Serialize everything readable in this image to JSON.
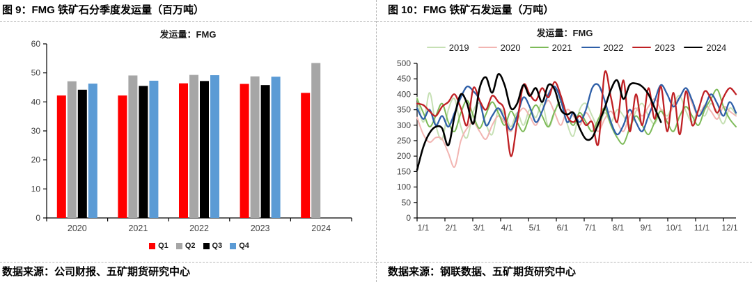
{
  "panels": {
    "left": {
      "title": "图 9：FMG 铁矿石分季度发运量（百万吨）",
      "source": "数据来源：公司财报、五矿期货研究中心"
    },
    "right": {
      "title": "图 10：FMG 铁矿石发运量（万吨）",
      "source": "数据来源：钢联数据、五矿期货研究中心"
    }
  },
  "chart_data": [
    {
      "type": "bar",
      "title": "发运量：FMG",
      "categories": [
        "2020",
        "2021",
        "2022",
        "2023",
        "2024"
      ],
      "series": [
        {
          "name": "Q1",
          "color": "#ff0000",
          "values": [
            42.2,
            42.2,
            46.4,
            46.2,
            43.1
          ]
        },
        {
          "name": "Q2",
          "color": "#a6a6a6",
          "values": [
            47.1,
            49.1,
            49.3,
            48.8,
            53.4
          ]
        },
        {
          "name": "Q3",
          "color": "#000000",
          "values": [
            44.2,
            45.5,
            47.2,
            45.8,
            null
          ]
        },
        {
          "name": "Q4",
          "color": "#5b9bd5",
          "values": [
            46.3,
            47.3,
            49.2,
            48.7,
            null
          ]
        }
      ],
      "ylim": [
        0,
        60
      ],
      "ytick_step": 10,
      "grid": false,
      "legend_position": "bottom"
    },
    {
      "type": "line",
      "title": "发运量：FMG",
      "x_unit": "weekly, week index from Jan 1",
      "xticklabels": [
        "1/1",
        "2/1",
        "3/1",
        "4/1",
        "5/1",
        "6/1",
        "7/1",
        "8/1",
        "9/1",
        "10/1",
        "11/1",
        "12/1"
      ],
      "ylim": [
        0,
        500
      ],
      "ytick_step": 50,
      "grid": false,
      "legend_position": "top",
      "series": [
        {
          "name": "2019",
          "color": "#c6e0b4",
          "width": 2,
          "values": [
            390,
            310,
            405,
            300,
            255,
            350,
            385,
            295,
            260,
            345,
            370,
            305,
            270,
            350,
            335,
            295,
            340,
            300,
            350,
            325,
            370,
            295,
            340,
            385,
            305,
            265,
            350,
            370,
            330,
            295,
            340,
            310,
            350,
            330,
            300,
            345,
            370,
            330,
            305,
            350,
            330,
            370,
            395,
            345,
            310,
            350,
            330,
            370,
            340,
            305,
            355,
            335
          ]
        },
        {
          "name": "2020",
          "color": "#f2b5b2",
          "width": 2,
          "values": [
            325,
            270,
            245,
            260,
            255,
            210,
            165,
            250,
            290,
            310,
            280,
            255,
            300,
            330,
            310,
            280,
            330,
            355,
            330,
            300,
            345,
            380,
            340,
            300,
            350,
            330,
            300,
            340,
            310,
            280,
            320,
            345,
            310,
            280,
            330,
            355,
            330,
            360,
            385,
            350,
            320,
            365,
            390,
            420,
            370,
            330,
            365,
            345,
            320,
            360,
            345,
            330
          ]
        },
        {
          "name": "2021",
          "color": "#7dba58",
          "width": 2,
          "values": [
            385,
            340,
            295,
            330,
            370,
            310,
            280,
            340,
            380,
            330,
            290,
            335,
            375,
            340,
            300,
            345,
            310,
            280,
            330,
            365,
            330,
            295,
            345,
            375,
            330,
            300,
            340,
            310,
            280,
            320,
            355,
            300,
            260,
            240,
            290,
            330,
            300,
            270,
            310,
            345,
            310,
            280,
            330,
            360,
            330,
            300,
            350,
            385,
            415,
            360,
            320,
            295
          ]
        },
        {
          "name": "2022",
          "color": "#2e5fa8",
          "width": 2.3,
          "values": [
            355,
            320,
            350,
            300,
            330,
            295,
            340,
            390,
            425,
            410,
            380,
            300,
            330,
            355,
            320,
            285,
            330,
            390,
            360,
            310,
            345,
            400,
            425,
            380,
            310,
            340,
            310,
            350,
            420,
            430,
            380,
            310,
            270,
            300,
            350,
            310,
            280,
            330,
            380,
            430,
            400,
            360,
            390,
            420,
            380,
            330,
            360,
            400,
            370,
            330,
            375,
            340
          ]
        },
        {
          "name": "2023",
          "color": "#bf2024",
          "width": 2.3,
          "values": [
            370,
            365,
            345,
            330,
            360,
            375,
            400,
            355,
            300,
            420,
            380,
            350,
            395,
            375,
            345,
            200,
            310,
            430,
            400,
            380,
            420,
            390,
            440,
            395,
            330,
            310,
            330,
            300,
            310,
            240,
            470,
            390,
            310,
            445,
            280,
            400,
            300,
            420,
            320,
            425,
            280,
            405,
            270,
            410,
            300,
            350,
            410,
            385,
            340,
            390,
            420,
            400
          ]
        },
        {
          "name": "2024",
          "color": "#000000",
          "width": 2.6,
          "values": [
            155,
            230,
            275,
            295,
            290,
            235,
            330,
            400,
            370,
            305,
            420,
            455,
            405,
            465,
            430,
            355,
            370,
            430,
            395,
            420,
            375,
            430,
            415,
            350,
            335,
            340,
            290,
            255,
            260,
            305,
            355,
            415,
            445,
            385,
            430,
            435,
            425,
            400,
            355,
            310
          ]
        }
      ]
    }
  ]
}
